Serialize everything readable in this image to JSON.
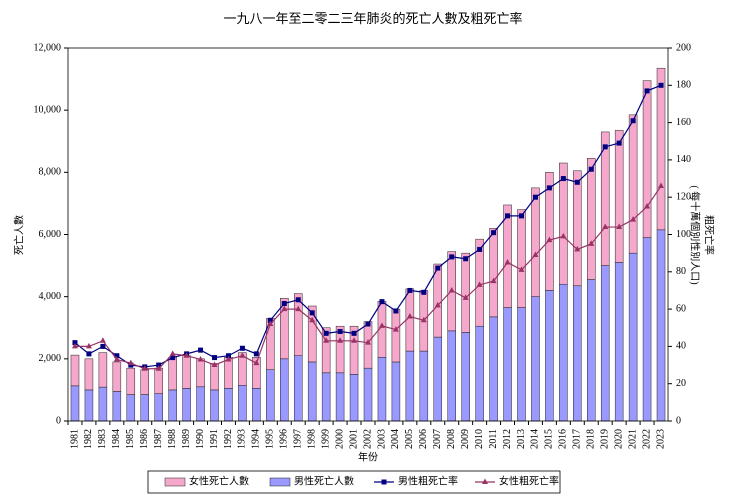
{
  "chart_data": {
    "type": "bar-line",
    "title": "一九八一年至二零二三年肺炎的死亡人數及粗死亡率",
    "xlabel": "年份",
    "ylabel": "死亡人數",
    "y2label": [
      "粗死亡率",
      "( 每十萬個別性別人口)"
    ],
    "categories": [
      "1981",
      "1982",
      "1983",
      "1984",
      "1985",
      "1986",
      "1987",
      "1988",
      "1989",
      "1990",
      "1991",
      "1992",
      "1993",
      "1994",
      "1995",
      "1996",
      "1997",
      "1998",
      "1999",
      "2000",
      "2001",
      "2002",
      "2003",
      "2004",
      "2005",
      "2006",
      "2007",
      "2008",
      "2009",
      "2010",
      "2011",
      "2012",
      "2013",
      "2014",
      "2015",
      "2016",
      "2017",
      "2018",
      "2019",
      "2020",
      "2021",
      "2022",
      "2023"
    ],
    "ylim": [
      0,
      12000
    ],
    "yticks": [
      0,
      {
        "value": 2000,
        "label": "2,000"
      },
      {
        "value": 4000,
        "label": "4,000"
      },
      {
        "value": 6000,
        "label": "6,000"
      },
      {
        "value": 8000,
        "label": "8,000"
      },
      {
        "value": 10000,
        "label": "10,000"
      },
      {
        "value": 12000,
        "label": "12,000"
      }
    ],
    "y2lim": [
      0,
      200
    ],
    "y2ticks": [
      0,
      20,
      40,
      60,
      80,
      100,
      120,
      140,
      160,
      180,
      200
    ],
    "series": [
      {
        "name": "女性死亡人數",
        "type": "bar",
        "color": "#f6a8cc",
        "values": [
          990,
          1000,
          1110,
          950,
          850,
          800,
          820,
          1050,
          1050,
          900,
          850,
          1000,
          1050,
          1000,
          1650,
          1950,
          2000,
          1800,
          1450,
          1500,
          1550,
          1500,
          1800,
          1700,
          2000,
          1950,
          2350,
          2550,
          2550,
          2800,
          2850,
          3300,
          3150,
          3500,
          3800,
          3900,
          3700,
          3900,
          4300,
          4250,
          4450,
          5050,
          5200
        ]
      },
      {
        "name": "男性死亡人數",
        "type": "bar",
        "color": "#9999ff",
        "values": [
          1130,
          1000,
          1090,
          950,
          850,
          850,
          880,
          1000,
          1050,
          1100,
          1000,
          1050,
          1150,
          1050,
          1650,
          2000,
          2100,
          1900,
          1550,
          1550,
          1500,
          1700,
          2050,
          1900,
          2250,
          2250,
          2700,
          2900,
          2850,
          3050,
          3350,
          3650,
          3650,
          4000,
          4200,
          4400,
          4350,
          4550,
          5000,
          5100,
          5400,
          5900,
          6150
        ]
      },
      {
        "name": "男性粗死亡率",
        "type": "line",
        "axis": "y2",
        "color": "#000080",
        "marker": "square",
        "values": [
          42,
          36,
          40,
          35,
          30,
          29,
          30,
          34,
          36,
          38,
          34,
          35,
          39,
          36,
          54,
          63,
          65,
          58,
          47,
          48,
          47,
          52,
          64,
          59,
          70,
          69,
          82,
          88,
          87,
          92,
          101,
          110,
          110,
          120,
          125,
          130,
          128,
          135,
          147,
          149,
          161,
          177,
          180
        ]
      },
      {
        "name": "女性粗死亡率",
        "type": "line",
        "axis": "y2",
        "color": "#993366",
        "marker": "triangle",
        "values": [
          40,
          40,
          43,
          33,
          31,
          28,
          28,
          36,
          35,
          33,
          30,
          33,
          35,
          31,
          52,
          60,
          60,
          54,
          43,
          43,
          43,
          42,
          51,
          49,
          56,
          54,
          62,
          70,
          66,
          73,
          75,
          85,
          81,
          89,
          97,
          99,
          92,
          95,
          104,
          104,
          108,
          115,
          126
        ]
      }
    ]
  }
}
